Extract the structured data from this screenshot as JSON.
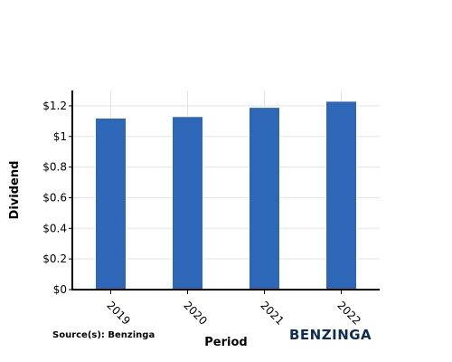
{
  "chart_data": {
    "type": "bar",
    "title": "",
    "xlabel": "Period",
    "ylabel": "Dividend",
    "categories": [
      "2019",
      "2020",
      "2021",
      "2022"
    ],
    "values": [
      1.12,
      1.13,
      1.19,
      1.23
    ],
    "ylim": [
      0,
      1.3
    ],
    "yticks": [
      0,
      0.2,
      0.4,
      0.6,
      0.8,
      1.0,
      1.2
    ],
    "ytick_labels": [
      "$0",
      "$0.2",
      "$0.4",
      "$0.6",
      "$0.8",
      "$1",
      "$1.2"
    ],
    "grid": true,
    "bar_color": "#2e67b8"
  },
  "footer": {
    "source": "Source(s): Benzinga",
    "brand": "BENZINGA"
  }
}
